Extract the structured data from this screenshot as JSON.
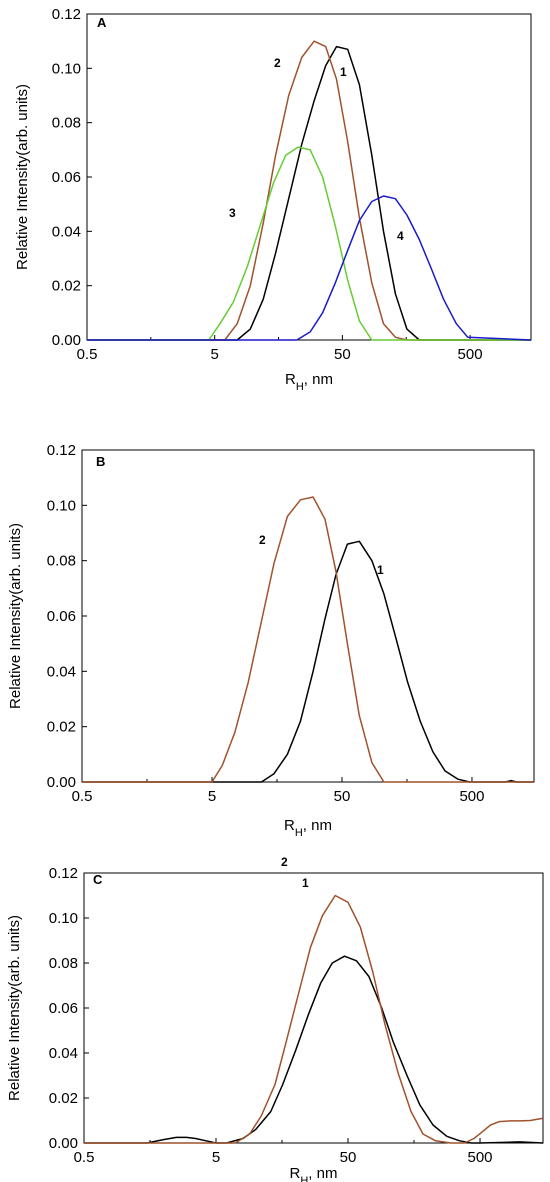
{
  "chart_data": [
    {
      "type": "line",
      "panel_label": "A",
      "xlabel": "R",
      "xlabel_sub": "H",
      "xlabel_unit": ", nm",
      "ylabel": "Relative Intensity(arb. units)",
      "x_scale": "log",
      "xlim": [
        0.5,
        1500
      ],
      "ylim": [
        0,
        0.12
      ],
      "x_ticks": [
        0.5,
        5,
        50,
        500
      ],
      "x_tick_labels": [
        "0.5",
        "5",
        "50",
        "500"
      ],
      "y_ticks": [
        0,
        0.02,
        0.04,
        0.06,
        0.08,
        0.1,
        0.12
      ],
      "y_tick_labels": [
        "0.00",
        "0.02",
        "0.04",
        "0.06",
        "0.08",
        "0.10",
        "0.12"
      ],
      "grid": false,
      "series": [
        {
          "name": "1",
          "color": "#000000",
          "x": [
            0.5,
            7.5,
            9.5,
            12,
            15,
            19,
            24,
            30,
            37,
            45,
            55,
            68,
            85,
            105,
            130,
            160,
            200,
            1500
          ],
          "y": [
            0,
            0,
            0.004,
            0.015,
            0.032,
            0.052,
            0.072,
            0.088,
            0.101,
            0.108,
            0.107,
            0.094,
            0.068,
            0.04,
            0.017,
            0.004,
            0,
            0
          ]
        },
        {
          "name": "2",
          "color": "#a0522d",
          "x": [
            0.5,
            6,
            7.5,
            9.5,
            12,
            15,
            19,
            24,
            30,
            37,
            45,
            55,
            68,
            85,
            105,
            130,
            160,
            1500
          ],
          "y": [
            0,
            0,
            0.006,
            0.02,
            0.043,
            0.068,
            0.09,
            0.104,
            0.11,
            0.108,
            0.096,
            0.073,
            0.045,
            0.021,
            0.006,
            0.001,
            0,
            0
          ]
        },
        {
          "name": "3",
          "color": "#66cc33",
          "x": [
            0.5,
            4.5,
            5.5,
            7,
            9,
            11.5,
            14.5,
            18,
            22.5,
            28,
            35,
            44,
            55,
            68,
            85,
            1500
          ],
          "y": [
            0,
            0,
            0.006,
            0.014,
            0.027,
            0.043,
            0.058,
            0.068,
            0.071,
            0.07,
            0.06,
            0.042,
            0.022,
            0.007,
            0,
            0
          ]
        },
        {
          "name": "4",
          "color": "#1a1acc",
          "x": [
            0.5,
            22,
            28,
            35,
            44,
            55,
            68,
            85,
            105,
            130,
            160,
            200,
            250,
            310,
            390,
            480,
            1500
          ],
          "y": [
            0,
            0,
            0.003,
            0.01,
            0.021,
            0.033,
            0.044,
            0.051,
            0.053,
            0.052,
            0.046,
            0.037,
            0.026,
            0.015,
            0.006,
            0.001,
            0
          ]
        }
      ]
    },
    {
      "type": "line",
      "panel_label": "B",
      "xlabel": "R",
      "xlabel_sub": "H",
      "xlabel_unit": ", nm",
      "ylabel": "Relative Intensity(arb. units)",
      "x_scale": "log",
      "xlim": [
        0.5,
        1500
      ],
      "ylim": [
        0,
        0.12
      ],
      "x_ticks": [
        0.5,
        5,
        50,
        500
      ],
      "x_tick_labels": [
        "0.5",
        "5",
        "50",
        "500"
      ],
      "y_ticks": [
        0,
        0.02,
        0.04,
        0.06,
        0.08,
        0.1,
        0.12
      ],
      "y_tick_labels": [
        "0.00",
        "0.02",
        "0.04",
        "0.06",
        "0.08",
        "0.10",
        "0.12"
      ],
      "grid": false,
      "series": [
        {
          "name": "1",
          "color": "#000000",
          "x": [
            0.5,
            12,
            15,
            19,
            24,
            30,
            37,
            45,
            55,
            68,
            85,
            105,
            130,
            160,
            200,
            250,
            310,
            390,
            480,
            900,
            1000,
            1100,
            1500
          ],
          "y": [
            0,
            0,
            0.003,
            0.01,
            0.022,
            0.04,
            0.059,
            0.075,
            0.086,
            0.087,
            0.08,
            0.068,
            0.052,
            0.036,
            0.022,
            0.011,
            0.004,
            0.001,
            0,
            0,
            0.0005,
            0,
            0
          ]
        },
        {
          "name": "2",
          "color": "#a0522d",
          "x": [
            0.5,
            5,
            6,
            7.5,
            9.5,
            12,
            15,
            19,
            24,
            30,
            37,
            45,
            55,
            68,
            85,
            105,
            1500
          ],
          "y": [
            0,
            0,
            0.006,
            0.018,
            0.036,
            0.058,
            0.079,
            0.096,
            0.102,
            0.103,
            0.095,
            0.076,
            0.05,
            0.024,
            0.007,
            0,
            0
          ]
        }
      ]
    },
    {
      "type": "line",
      "panel_label": "C",
      "xlabel": "R",
      "xlabel_sub": "H",
      "xlabel_unit": ", nm",
      "ylabel": "Relative Intensity(arb. units)",
      "x_scale": "log",
      "xlim": [
        0.5,
        1500
      ],
      "ylim": [
        0,
        0.12
      ],
      "x_ticks": [
        0.5,
        5,
        50,
        500
      ],
      "x_tick_labels": [
        "0.5",
        "5",
        "50",
        "500"
      ],
      "y_ticks": [
        0,
        0.02,
        0.04,
        0.06,
        0.08,
        0.1,
        0.12
      ],
      "y_tick_labels": [
        "0.00",
        "0.02",
        "0.04",
        "0.06",
        "0.08",
        "0.10",
        "0.12"
      ],
      "grid": false,
      "series": [
        {
          "name": "1",
          "color": "#000000",
          "x": [
            0.5,
            1.5,
            2,
            2.5,
            3,
            3.5,
            4.2,
            5,
            6,
            8,
            10,
            13,
            16,
            20,
            25,
            31,
            38,
            47,
            58,
            72,
            90,
            110,
            140,
            175,
            220,
            280,
            350,
            430,
            500,
            1000,
            1500
          ],
          "y": [
            0,
            0,
            0.0015,
            0.0025,
            0.0025,
            0.002,
            0.001,
            0,
            0,
            0.002,
            0.006,
            0.014,
            0.026,
            0.041,
            0.057,
            0.071,
            0.08,
            0.083,
            0.081,
            0.074,
            0.06,
            0.045,
            0.03,
            0.017,
            0.008,
            0.003,
            0.001,
            0,
            0,
            0.0005,
            0
          ]
        },
        {
          "name": "2",
          "color": "#a0522d",
          "x": [
            0.5,
            7,
            9,
            11,
            14,
            17,
            21,
            26,
            32,
            40,
            50,
            62,
            77,
            95,
            120,
            150,
            185,
            230,
            300,
            380,
            450,
            520,
            600,
            700,
            850,
            1000,
            1200,
            1500
          ],
          "y": [
            0,
            0,
            0.004,
            0.012,
            0.026,
            0.045,
            0.066,
            0.087,
            0.101,
            0.11,
            0.107,
            0.096,
            0.076,
            0.053,
            0.031,
            0.014,
            0.004,
            0.001,
            0,
            0,
            0.002,
            0.005,
            0.008,
            0.0095,
            0.0098,
            0.0098,
            0.01,
            0.011
          ]
        }
      ]
    }
  ]
}
